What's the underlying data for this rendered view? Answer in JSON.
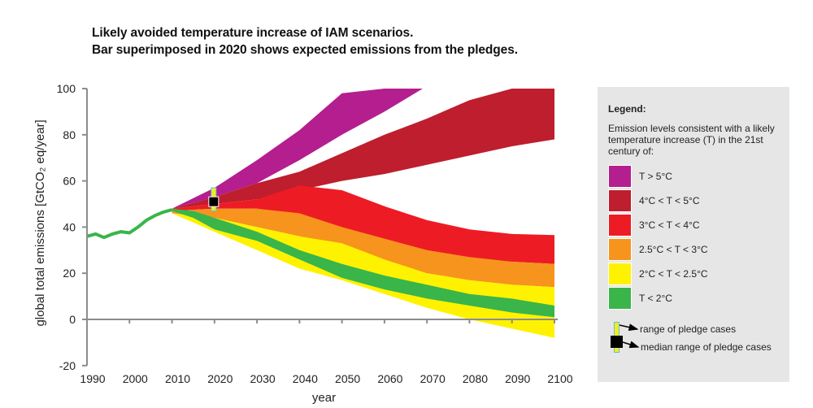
{
  "title": {
    "line1": "Likely avoided temperature increase of IAM scenarios.",
    "line2": "Bar superimposed in 2020 shows expected emissions from the pledges."
  },
  "legend": {
    "title": "Legend:",
    "description": "Emission levels consistent with a likely temperature increase (T) in the 21st century of:",
    "items": [
      {
        "label": "T > 5°C",
        "color": "#b41e8e"
      },
      {
        "label": "4°C < T < 5°C",
        "color": "#be1e2d"
      },
      {
        "label": "3°C < T < 4°C",
        "color": "#ed1c24"
      },
      {
        "label": "2.5°C < T < 3°C",
        "color": "#f7941d"
      },
      {
        "label": "2°C < T < 2.5°C",
        "color": "#fff200"
      },
      {
        "label": "T < 2°C",
        "color": "#39b54a"
      }
    ],
    "pledge_range_label": "range of pledge cases",
    "pledge_median_label": "median range of pledge cases"
  },
  "chart_data": {
    "type": "area",
    "title": "Likely avoided temperature increase of IAM scenarios. Bar superimposed in 2020 shows expected emissions from the pledges.",
    "xlabel": "year",
    "ylabel": "global total emissions [GtCO₂ eq/year]",
    "xlim": [
      1990,
      2100
    ],
    "ylim": [
      -20,
      100
    ],
    "xticks": [
      1990,
      2000,
      2010,
      2020,
      2030,
      2040,
      2050,
      2060,
      2070,
      2080,
      2090,
      2100
    ],
    "yticks": [
      -20,
      0,
      20,
      40,
      60,
      80,
      100
    ],
    "grid": false,
    "legend_position": "right",
    "historical": {
      "name": "historical emissions",
      "color": "#39b54a",
      "x": [
        1990,
        1992,
        1994,
        1996,
        1998,
        2000,
        2002,
        2004,
        2006,
        2008,
        2010
      ],
      "y": [
        36,
        37,
        35.5,
        37,
        38,
        37.5,
        40,
        43,
        45,
        46.5,
        47.5
      ]
    },
    "bands": [
      {
        "name": "T > 5°C",
        "color": "#b41e8e",
        "x": [
          2010,
          2020,
          2030,
          2040,
          2050,
          2060,
          2069
        ],
        "upper": [
          48,
          57,
          69,
          82,
          98,
          100,
          100
        ],
        "lower": [
          48,
          53,
          59,
          69,
          80,
          90,
          100
        ]
      },
      {
        "name": "4°C < T < 5°C",
        "color": "#be1e2d",
        "x": [
          2010,
          2020,
          2030,
          2040,
          2050,
          2060,
          2070,
          2080,
          2090,
          2100
        ],
        "upper": [
          48,
          53,
          59,
          64,
          72,
          80,
          87,
          95,
          100,
          100
        ],
        "lower": [
          48,
          50,
          52,
          56,
          60,
          63,
          67,
          71,
          75,
          78
        ]
      },
      {
        "name": "3°C < T < 4°C",
        "color": "#ed1c24",
        "x": [
          2010,
          2020,
          2030,
          2040,
          2050,
          2060,
          2070,
          2080,
          2090,
          2100
        ],
        "upper": [
          48,
          50,
          52,
          58,
          56,
          49,
          43,
          39,
          37,
          36.5
        ],
        "lower": [
          47,
          48,
          48,
          45,
          39,
          33,
          29,
          26,
          25,
          24
        ]
      },
      {
        "name": "2.5°C < T < 3°C",
        "color": "#f7941d",
        "x": [
          2010,
          2020,
          2030,
          2040,
          2050,
          2060,
          2070,
          2080,
          2090,
          2100
        ],
        "upper": [
          47,
          48,
          48,
          46,
          40,
          35,
          30,
          27,
          25,
          24
        ],
        "lower": [
          46,
          44,
          40,
          36,
          30,
          24,
          20,
          17,
          15,
          14
        ]
      },
      {
        "name": "2°C < T < 2.5°C",
        "color": "#fff200",
        "x": [
          2010,
          2020,
          2030,
          2040,
          2050,
          2060,
          2070,
          2080,
          2090,
          2100
        ],
        "upper": [
          46,
          44,
          40,
          36,
          33,
          26,
          20,
          17,
          15,
          14
        ],
        "lower": [
          46,
          38,
          30,
          22,
          17,
          11,
          5,
          0,
          -4,
          -8
        ]
      },
      {
        "name": "T < 2°C",
        "color": "#39b54a",
        "x": [
          2010,
          2015,
          2020,
          2030,
          2040,
          2050,
          2060,
          2070,
          2080,
          2090,
          2100
        ],
        "upper": [
          48,
          47,
          44,
          38,
          30,
          24,
          19,
          15,
          11,
          9,
          6
        ],
        "lower": [
          47,
          44,
          39,
          34,
          26,
          18,
          13,
          9,
          6,
          3,
          1
        ]
      }
    ],
    "pledges": {
      "year": 2020,
      "range": [
        47,
        57
      ],
      "median": 51
    }
  }
}
